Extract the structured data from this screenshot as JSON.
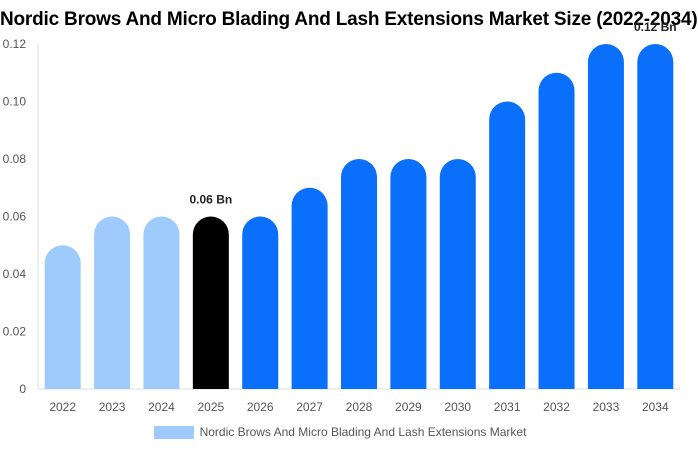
{
  "chart_data": {
    "type": "bar",
    "title": "Nordic Brows And Micro Blading And Lash Extensions Market Size (2022-2034)",
    "categories": [
      "2022",
      "2023",
      "2024",
      "2025",
      "2026",
      "2027",
      "2028",
      "2029",
      "2030",
      "2031",
      "2032",
      "2033",
      "2034"
    ],
    "series": [
      {
        "name": "Nordic Brows And Micro Blading And Lash Extensions Market",
        "values": [
          0.05,
          0.06,
          0.06,
          0.06,
          0.06,
          0.07,
          0.08,
          0.08,
          0.08,
          0.1,
          0.11,
          0.12,
          0.12
        ]
      }
    ],
    "ylim": [
      0,
      0.12
    ],
    "yticks": [
      "0",
      "0.02",
      "0.04",
      "0.06",
      "0.08",
      "0.10",
      "0.12"
    ],
    "yticks_values": [
      0,
      0.02,
      0.04,
      0.06,
      0.08,
      0.1,
      0.12
    ],
    "data_labels": [
      {
        "category": "2025",
        "text": "0.06 Bn"
      },
      {
        "category": "2034",
        "text": "0.12 Bn"
      }
    ],
    "colors": {
      "historical": "#9fcbfc",
      "current": "#000000",
      "forecast": "#0a6ffb"
    },
    "current_year": "2025",
    "legend_position": "bottom",
    "grid": false
  }
}
